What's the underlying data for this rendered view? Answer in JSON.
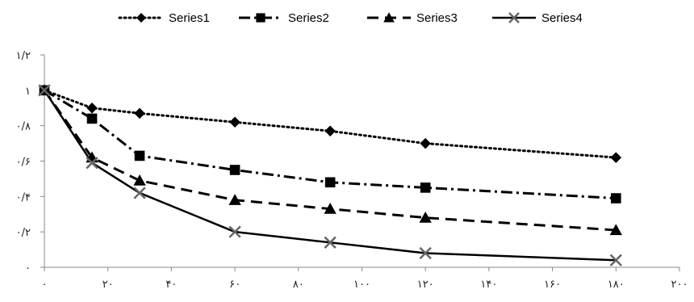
{
  "chart_data": {
    "type": "line",
    "x": [
      0,
      15,
      30,
      60,
      90,
      120,
      180
    ],
    "xlim": [
      0,
      200
    ],
    "ylim": [
      0,
      1.2
    ],
    "x_ticks": [
      0,
      20,
      40,
      60,
      80,
      100,
      120,
      140,
      160,
      180,
      200
    ],
    "x_tick_labels": [
      "٠",
      "٢٠",
      "۴٠",
      "۶٠",
      "٨٠",
      "١٠٠",
      "١٢٠",
      "١۴٠",
      "١۶٠",
      "١٨٠",
      "٢٠٠"
    ],
    "y_ticks": [
      0,
      0.2,
      0.4,
      0.6,
      0.8,
      1.0,
      1.2
    ],
    "y_tick_labels": [
      "٠",
      "٠/٢",
      "٠/۴",
      "٠/۶",
      "٠/٨",
      "١",
      "١/٢"
    ],
    "grid": false,
    "legend_position": "top",
    "series": [
      {
        "name": "Series1",
        "values": [
          1.0,
          0.9,
          0.87,
          0.82,
          0.77,
          0.7,
          0.62
        ],
        "color": "#000000",
        "line": "dotted",
        "marker": "diamond"
      },
      {
        "name": "Series2",
        "values": [
          1.0,
          0.84,
          0.63,
          0.55,
          0.48,
          0.45,
          0.39
        ],
        "color": "#000000",
        "line": "dash-dot",
        "marker": "square"
      },
      {
        "name": "Series3",
        "values": [
          1.0,
          0.62,
          0.49,
          0.38,
          0.33,
          0.28,
          0.21
        ],
        "color": "#000000",
        "line": "dashed",
        "marker": "triangle"
      },
      {
        "name": "Series4",
        "values": [
          1.0,
          0.59,
          0.42,
          0.2,
          0.14,
          0.08,
          0.04
        ],
        "color": "#000000",
        "line": "solid",
        "marker": "x"
      }
    ]
  }
}
